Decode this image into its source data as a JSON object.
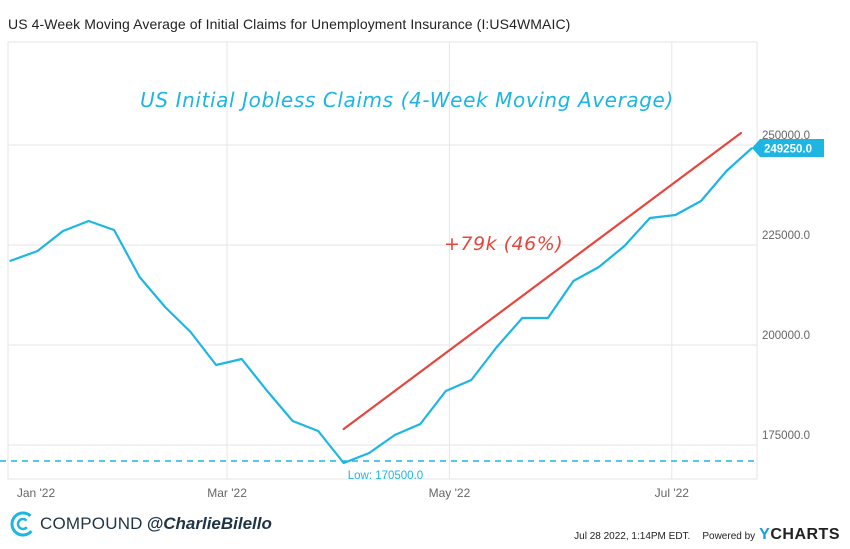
{
  "header": {
    "title": "US 4-Week Moving Average of Initial Claims for Unemployment Insurance (I:US4WMAIC)"
  },
  "chart_data": {
    "type": "line",
    "title": "US 4-Week Moving Average of Initial Claims for Unemployment Insurance (I:US4WMAIC)",
    "inner_title": "US Initial Jobless Claims (4-Week Moving Average)",
    "x_tick_labels": [
      "Jan '22",
      "Mar '22",
      "May '22",
      "Jul '22"
    ],
    "y_tick_labels": [
      "250000.0",
      "225000.0",
      "200000.0",
      "175000.0"
    ],
    "y_ticks": [
      250000,
      225000,
      200000,
      175000
    ],
    "ylim": [
      168000,
      275000
    ],
    "series": [
      {
        "name": "US 4-Week Moving Average of Initial Claims",
        "color": "#1db6e3",
        "dates": [
          "2022-01-01",
          "2022-01-08",
          "2022-01-15",
          "2022-01-22",
          "2022-01-29",
          "2022-02-05",
          "2022-02-12",
          "2022-02-19",
          "2022-02-26",
          "2022-03-05",
          "2022-03-12",
          "2022-03-19",
          "2022-03-26",
          "2022-04-02",
          "2022-04-09",
          "2022-04-16",
          "2022-04-23",
          "2022-04-30",
          "2022-05-07",
          "2022-05-14",
          "2022-05-21",
          "2022-05-28",
          "2022-06-04",
          "2022-06-11",
          "2022-06-18",
          "2022-06-25",
          "2022-07-02",
          "2022-07-09",
          "2022-07-16",
          "2022-07-23"
        ],
        "values": [
          221000,
          223500,
          228500,
          231000,
          228750,
          217000,
          209500,
          203250,
          195000,
          196500,
          188500,
          181000,
          178500,
          170500,
          173000,
          177500,
          180250,
          188500,
          191250,
          199500,
          206750,
          206750,
          216000,
          219500,
          224750,
          231750,
          232500,
          236000,
          243500,
          249250
        ]
      }
    ],
    "low_line": {
      "value": 170500,
      "label": "Low: 170500.0"
    },
    "last_value_label": "249250.0",
    "annotation": {
      "text": "+79k (46%)",
      "color": "#e4473d",
      "trend_from": {
        "date": "2022-04-02",
        "value": 179000
      },
      "trend_to": {
        "date": "2022-07-23",
        "value": 253000
      }
    },
    "grid": true,
    "legend": "none"
  },
  "footer": {
    "brand": "COMPOUND",
    "handle": "@CharlieBilello",
    "timestamp": "Jul 28 2022, 1:14PM EDT.",
    "powered_by": "Powered by",
    "provider_y": "Y",
    "provider_rest": "CHARTS"
  },
  "colors": {
    "line": "#1db6e3",
    "trend": "#e4473d",
    "grid": "#e6e6e6",
    "axis_text": "#666666",
    "brand": "#1f3447"
  }
}
